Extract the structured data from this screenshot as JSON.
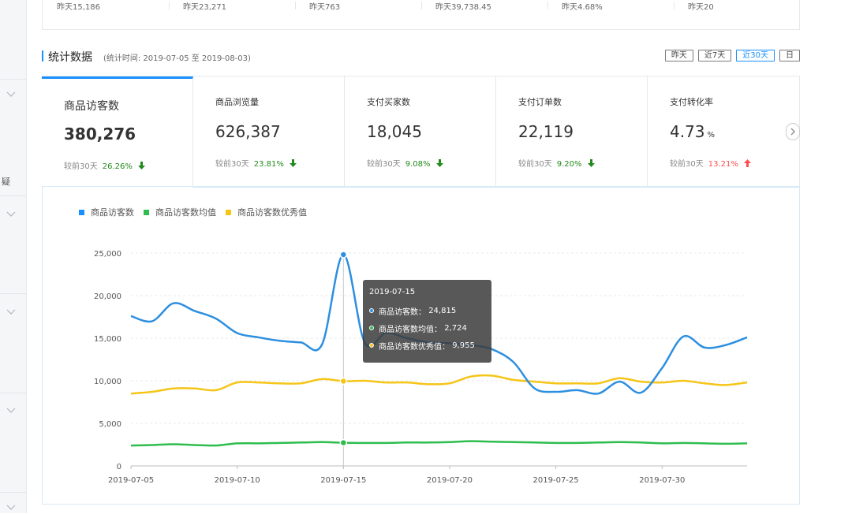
{
  "top_summary": [
    "昨天15,186",
    "昨天23,271",
    "昨天763",
    "昨天39,738.45",
    "昨天4.68%",
    "昨天20"
  ],
  "sidebar": {
    "text": "疑"
  },
  "section": {
    "title": "统计数据",
    "subtitle": "(统计时间: 2019-07-05 至 2019-08-03)",
    "ranges": [
      "昨天",
      "近7天",
      "近30天",
      "日"
    ],
    "active_range": "近30天"
  },
  "metrics": [
    {
      "label": "商品访客数",
      "value": "380,276",
      "unit": "",
      "compare": "较前30天",
      "pct": "26.26%",
      "trend": "down"
    },
    {
      "label": "商品浏览量",
      "value": "626,387",
      "unit": "",
      "compare": "较前30天",
      "pct": "23.81%",
      "trend": "down"
    },
    {
      "label": "支付买家数",
      "value": "18,045",
      "unit": "",
      "compare": "较前30天",
      "pct": "9.08%",
      "trend": "down"
    },
    {
      "label": "支付订单数",
      "value": "22,119",
      "unit": "",
      "compare": "较前30天",
      "pct": "9.20%",
      "trend": "down"
    },
    {
      "label": "支付转化率",
      "value": "4.73",
      "unit": "%",
      "compare": "较前30天",
      "pct": "13.21%",
      "trend": "up"
    }
  ],
  "colors": {
    "accent": "#1890ff",
    "visitors": "#2d8fe0",
    "avg": "#2ebd4e",
    "excellent": "#f5c518",
    "down": "#238a1c",
    "up": "#ff4d4f"
  },
  "tooltip": {
    "date": "2019-07-15",
    "rows": [
      {
        "label": "商品访客数：",
        "value": "24,815"
      },
      {
        "label": "商品访客数均值：",
        "value": "2,724"
      },
      {
        "label": "商品访客数优秀值：",
        "value": "9,955"
      }
    ]
  },
  "chart_data": {
    "type": "line",
    "x": [
      "2019-07-05",
      "2019-07-06",
      "2019-07-07",
      "2019-07-08",
      "2019-07-09",
      "2019-07-10",
      "2019-07-11",
      "2019-07-12",
      "2019-07-13",
      "2019-07-14",
      "2019-07-15",
      "2019-07-16",
      "2019-07-17",
      "2019-07-18",
      "2019-07-19",
      "2019-07-20",
      "2019-07-21",
      "2019-07-22",
      "2019-07-23",
      "2019-07-24",
      "2019-07-25",
      "2019-07-26",
      "2019-07-27",
      "2019-07-28",
      "2019-07-29",
      "2019-07-30",
      "2019-07-31",
      "2019-08-01",
      "2019-08-02",
      "2019-08-03"
    ],
    "xticks": [
      "2019-07-05",
      "2019-07-10",
      "2019-07-15",
      "2019-07-20",
      "2019-07-25",
      "2019-07-30"
    ],
    "ylim": [
      0,
      25000
    ],
    "yticks": [
      "0",
      "5,000",
      "10,000",
      "15,000",
      "20,000",
      "25,000"
    ],
    "series": [
      {
        "name": "商品访客数",
        "values": [
          17600,
          17000,
          19100,
          18200,
          17300,
          15600,
          15100,
          14700,
          14500,
          14300,
          24815,
          14500,
          15600,
          15000,
          14500,
          14400,
          14200,
          13700,
          12200,
          9100,
          8700,
          8900,
          8500,
          9900,
          8600,
          11500,
          15200,
          13900,
          14200,
          15100
        ]
      },
      {
        "name": "商品访客数均值",
        "values": [
          2400,
          2450,
          2550,
          2450,
          2400,
          2650,
          2650,
          2700,
          2750,
          2800,
          2724,
          2700,
          2700,
          2750,
          2750,
          2800,
          2900,
          2850,
          2800,
          2750,
          2700,
          2700,
          2750,
          2800,
          2750,
          2650,
          2700,
          2650,
          2600,
          2650
        ]
      },
      {
        "name": "商品访客数优秀值",
        "values": [
          8500,
          8700,
          9100,
          9100,
          8900,
          9800,
          9800,
          9700,
          9700,
          10200,
          9955,
          10000,
          9800,
          9800,
          9600,
          9700,
          10500,
          10600,
          10100,
          9900,
          9700,
          9700,
          9700,
          10300,
          9900,
          9800,
          10000,
          9700,
          9500,
          9800
        ]
      }
    ],
    "highlight_index": 10,
    "legend": "top-left",
    "grid": true
  }
}
